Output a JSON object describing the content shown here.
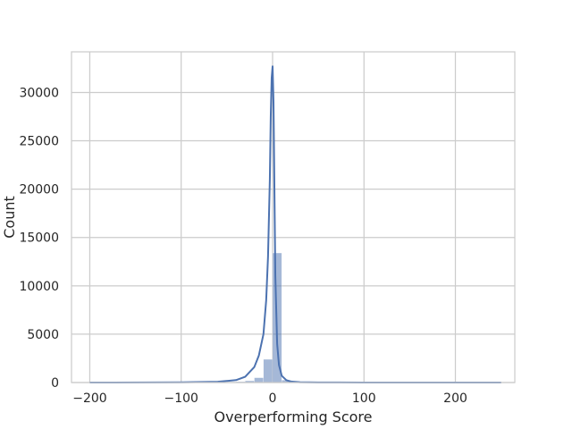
{
  "chart_data": {
    "type": "bar",
    "title": "",
    "xlabel": "Overperforming Score",
    "ylabel": "Count",
    "xlim": [
      -220,
      265
    ],
    "ylim": [
      0,
      34200
    ],
    "grid": true,
    "legend": "none",
    "x_ticks": [
      -200,
      -100,
      0,
      100,
      200
    ],
    "x_tick_labels": [
      "−200",
      "−100",
      "0",
      "100",
      "200"
    ],
    "y_ticks": [
      0,
      5000,
      10000,
      15000,
      20000,
      25000,
      30000
    ],
    "y_tick_labels": [
      "0",
      "5000",
      "10000",
      "15000",
      "20000",
      "25000",
      "30000"
    ],
    "bin_width": 10,
    "bins": [
      {
        "start": -200,
        "count": 2
      },
      {
        "start": -190,
        "count": 2
      },
      {
        "start": -180,
        "count": 3
      },
      {
        "start": -170,
        "count": 3
      },
      {
        "start": -160,
        "count": 4
      },
      {
        "start": -150,
        "count": 5
      },
      {
        "start": -140,
        "count": 5
      },
      {
        "start": -130,
        "count": 6
      },
      {
        "start": -120,
        "count": 8
      },
      {
        "start": -110,
        "count": 10
      },
      {
        "start": -100,
        "count": 12
      },
      {
        "start": -90,
        "count": 15
      },
      {
        "start": -80,
        "count": 20
      },
      {
        "start": -70,
        "count": 25
      },
      {
        "start": -60,
        "count": 35
      },
      {
        "start": -50,
        "count": 55
      },
      {
        "start": -40,
        "count": 90
      },
      {
        "start": -30,
        "count": 180
      },
      {
        "start": -20,
        "count": 500
      },
      {
        "start": -10,
        "count": 2400
      },
      {
        "start": 0,
        "count": 13400
      },
      {
        "start": 10,
        "count": 250
      },
      {
        "start": 20,
        "count": 60
      },
      {
        "start": 30,
        "count": 25
      },
      {
        "start": 40,
        "count": 12
      },
      {
        "start": 50,
        "count": 8
      },
      {
        "start": 60,
        "count": 5
      },
      {
        "start": 70,
        "count": 4
      },
      {
        "start": 80,
        "count": 3
      },
      {
        "start": 90,
        "count": 3
      },
      {
        "start": 100,
        "count": 2
      },
      {
        "start": 110,
        "count": 2
      },
      {
        "start": 120,
        "count": 2
      },
      {
        "start": 130,
        "count": 1
      },
      {
        "start": 140,
        "count": 1
      },
      {
        "start": 150,
        "count": 1
      },
      {
        "start": 160,
        "count": 1
      },
      {
        "start": 170,
        "count": 1
      },
      {
        "start": 180,
        "count": 1
      },
      {
        "start": 190,
        "count": 1
      },
      {
        "start": 200,
        "count": 1
      },
      {
        "start": 210,
        "count": 1
      },
      {
        "start": 220,
        "count": 1
      },
      {
        "start": 230,
        "count": 1
      },
      {
        "start": 240,
        "count": 1
      }
    ],
    "kde_curve": {
      "x": [
        -200,
        -100,
        -60,
        -40,
        -30,
        -20,
        -15,
        -10,
        -7,
        -5,
        -3,
        -2,
        -1,
        0,
        1,
        2,
        3,
        5,
        7,
        10,
        15,
        20,
        30,
        50,
        100,
        250
      ],
      "y": [
        0,
        20,
        80,
        250,
        600,
        1600,
        2800,
        5000,
        8500,
        13000,
        21000,
        27500,
        31500,
        32700,
        29000,
        20000,
        11000,
        4000,
        1800,
        700,
        250,
        100,
        40,
        10,
        2,
        0
      ]
    },
    "colors": {
      "bar_fill": "#4c72b0",
      "bar_opacity": 0.5,
      "kde_line": "#4c72b0",
      "grid": "#cccccc",
      "frame": "#cccccc",
      "text": "#262626"
    }
  }
}
